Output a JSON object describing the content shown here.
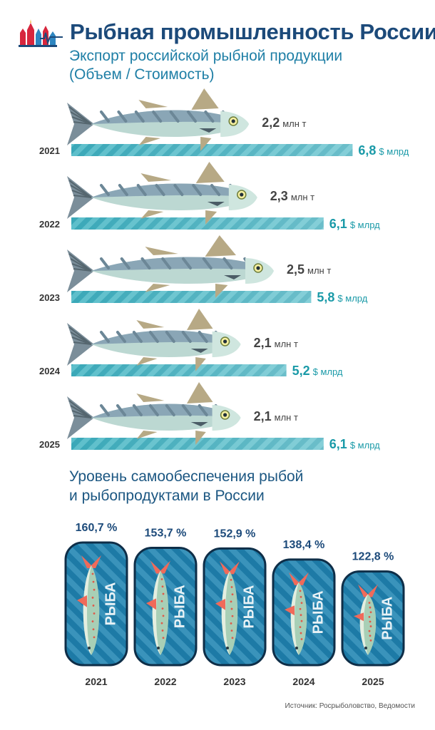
{
  "header": {
    "title": "Рыбная промышленность России",
    "subtitle_line1": "Экспорт российской рыбной продукции",
    "subtitle_line2": "(Объем / Стоимость)"
  },
  "section2": {
    "title_line1": "Уровень самообеспечения рыбой",
    "title_line2": "и рыбопродуктами в России",
    "can_label": "РЫБА"
  },
  "source": "Источник: Росрыболовство, Ведомости",
  "colors": {
    "title": "#1c4a7a",
    "subtitle": "#1f7fa6",
    "bar": "#3aa8b8",
    "value": "#1a9aa8",
    "can": "#1d7aa6",
    "can_border": "#0e2e48",
    "fish_back": "#8aa6b6",
    "fish_belly": "#bcd8d2",
    "fin": "#b7a985"
  },
  "chart_data": [
    {
      "type": "bar",
      "categories": [
        "2021",
        "2022",
        "2023",
        "2024",
        "2025"
      ],
      "series": [
        {
          "values": [
            2.2,
            2.3,
            2.5,
            2.1,
            2.1
          ],
          "labels": [
            "2,2",
            "2,3",
            "2,5",
            "2,1",
            "2,1"
          ],
          "unit": "млн т"
        },
        {
          "values": [
            6.8,
            6.1,
            5.8,
            5.2,
            6.1
          ],
          "labels": [
            "6,8",
            "6,1",
            "5,8",
            "5,2",
            "6,1"
          ],
          "unit": "$ млрд"
        }
      ]
    },
    {
      "type": "bar",
      "categories": [
        "2021",
        "2022",
        "2023",
        "2024",
        "2025"
      ],
      "values": [
        160.7,
        153.7,
        152.9,
        138.4,
        122.8
      ],
      "labels": [
        "160,7 %",
        "153,7 %",
        "152,9 %",
        "138,4 %",
        "122,8 %"
      ]
    }
  ]
}
